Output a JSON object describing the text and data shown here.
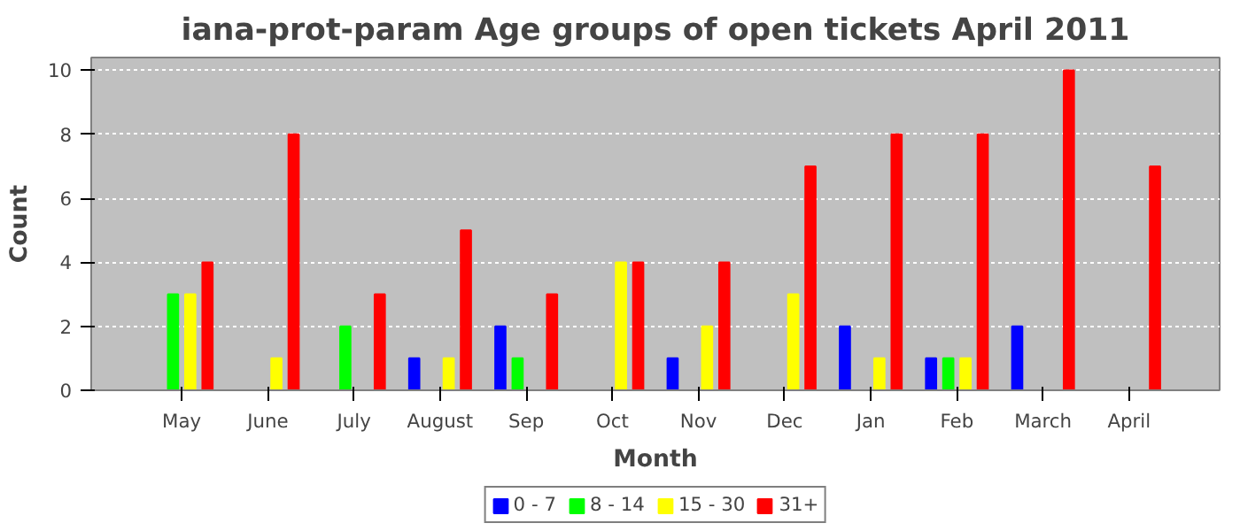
{
  "chart_data": {
    "type": "bar",
    "title": "iana-prot-param Age groups of open tickets April 2011",
    "xlabel": "Month",
    "ylabel": "Count",
    "categories": [
      "May",
      "June",
      "July",
      "August",
      "Sep",
      "Oct",
      "Nov",
      "Dec",
      "Jan",
      "Feb",
      "March",
      "April"
    ],
    "series": [
      {
        "name": "0 - 7",
        "color": "#0000ff",
        "values": [
          0,
          0,
          0,
          1,
          2,
          0,
          1,
          0,
          2,
          1,
          2,
          0
        ]
      },
      {
        "name": "8 - 14",
        "color": "#00ff00",
        "values": [
          3,
          0,
          2,
          0,
          1,
          0,
          0,
          0,
          0,
          1,
          0,
          0
        ]
      },
      {
        "name": "15 - 30",
        "color": "#ffff00",
        "values": [
          3,
          1,
          0,
          1,
          0,
          4,
          2,
          3,
          1,
          1,
          0,
          0
        ]
      },
      {
        "name": "31+",
        "color": "#ff0000",
        "values": [
          4,
          8,
          3,
          5,
          3,
          4,
          4,
          7,
          8,
          8,
          10,
          7
        ]
      }
    ],
    "ylim": [
      0,
      10.4
    ],
    "yticks": [
      0,
      2,
      4,
      6,
      8,
      10
    ],
    "grid": "y",
    "legend": "bottom"
  }
}
